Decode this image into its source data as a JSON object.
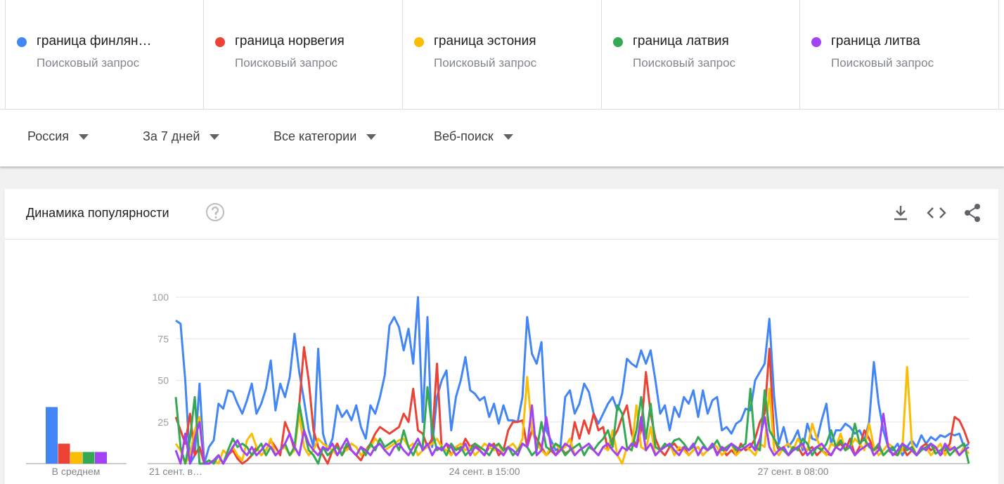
{
  "query_type": "Поисковый запрос",
  "filters": [
    "Россия",
    "За 7 дней",
    "Все категории",
    "Веб-поиск"
  ],
  "card_title": "Динамика популярности",
  "chart_data": [
    {
      "type": "bar",
      "xlabel": "В среднем",
      "ylim": [
        0,
        100
      ],
      "series": [
        {
          "color": "#4285f4",
          "values": [
            34
          ]
        },
        {
          "color": "#ea4335",
          "values": [
            12
          ]
        },
        {
          "color": "#fbbc04",
          "values": [
            7
          ]
        },
        {
          "color": "#34a853",
          "values": [
            7
          ]
        },
        {
          "color": "#a142f4",
          "values": [
            7
          ]
        }
      ]
    },
    {
      "type": "line",
      "ylim": [
        0,
        100
      ],
      "yticks": [
        25,
        50,
        75,
        100
      ],
      "grid": true,
      "categories": [
        "21 сент. в…",
        null,
        null,
        null,
        null,
        null,
        null,
        null,
        null,
        null,
        null,
        null,
        null,
        null,
        null,
        null,
        null,
        null,
        null,
        null,
        null,
        null,
        null,
        null,
        null,
        null,
        null,
        null,
        null,
        null,
        null,
        null,
        null,
        null,
        null,
        null,
        null,
        null,
        null,
        null,
        null,
        null,
        null,
        null,
        null,
        null,
        null,
        null,
        null,
        null,
        null,
        null,
        null,
        null,
        null,
        null,
        null,
        null,
        null,
        null,
        null,
        null,
        null,
        null,
        null,
        "24 сент. в 15:00",
        null,
        null,
        null,
        null,
        null,
        null,
        null,
        null,
        null,
        null,
        null,
        null,
        null,
        null,
        null,
        null,
        null,
        null,
        null,
        null,
        null,
        null,
        null,
        null,
        null,
        null,
        null,
        null,
        null,
        null,
        null,
        null,
        null,
        null,
        null,
        null,
        null,
        null,
        null,
        null,
        null,
        null,
        null,
        null,
        null,
        null,
        null,
        null,
        null,
        null,
        null,
        null,
        null,
        null,
        null,
        null,
        null,
        null,
        null,
        null,
        null,
        null,
        null,
        null,
        "27 сент. в 08:00",
        null,
        null,
        null,
        null,
        null,
        null,
        null,
        null,
        null,
        null,
        null,
        null,
        null,
        null,
        null,
        null,
        null,
        null,
        null,
        null,
        null,
        null,
        null,
        null,
        null,
        null,
        null,
        null,
        null,
        null,
        null,
        null,
        null,
        null,
        null,
        null,
        null
      ],
      "series": [
        {
          "name": "граница финлян…",
          "color": "#4285f4",
          "values": [
            86,
            84,
            50,
            0,
            5,
            48,
            0,
            10,
            14,
            36,
            33,
            44,
            43,
            36,
            30,
            38,
            48,
            30,
            36,
            45,
            62,
            32,
            48,
            40,
            52,
            78,
            55,
            38,
            20,
            10,
            69,
            18,
            8,
            15,
            35,
            28,
            32,
            26,
            35,
            22,
            15,
            35,
            30,
            40,
            53,
            83,
            88,
            82,
            68,
            81,
            60,
            100,
            25,
            88,
            10,
            40,
            50,
            56,
            20,
            40,
            50,
            64,
            44,
            42,
            38,
            40,
            28,
            36,
            24,
            35,
            26,
            26,
            25,
            40,
            88,
            66,
            60,
            73,
            20,
            14,
            8,
            10,
            40,
            44,
            30,
            36,
            48,
            43,
            30,
            24,
            30,
            36,
            40,
            32,
            42,
            63,
            60,
            58,
            68,
            60,
            68,
            50,
            30,
            35,
            20,
            34,
            28,
            40,
            36,
            44,
            28,
            44,
            30,
            38,
            40,
            20,
            22,
            18,
            24,
            26,
            33,
            32,
            50,
            55,
            60,
            87,
            40,
            12,
            22,
            10,
            14,
            20,
            8,
            24,
            15,
            14,
            26,
            36,
            12,
            20,
            20,
            24,
            22,
            18,
            20,
            14,
            25,
            61,
            36,
            20,
            10,
            8,
            12,
            5,
            10,
            14,
            10,
            17,
            12,
            16,
            14,
            17,
            16,
            18,
            17,
            18,
            10,
            12
          ]
        },
        {
          "name": "граница норвегия",
          "color": "#ea4335",
          "values": [
            28,
            20,
            12,
            30,
            5,
            10,
            0,
            0,
            2,
            5,
            0,
            5,
            8,
            3,
            0,
            2,
            5,
            10,
            5,
            8,
            14,
            10,
            5,
            25,
            18,
            8,
            35,
            70,
            50,
            20,
            10,
            5,
            0,
            8,
            12,
            5,
            10,
            8,
            5,
            2,
            8,
            12,
            18,
            22,
            20,
            18,
            20,
            22,
            30,
            25,
            45,
            20,
            18,
            10,
            15,
            60,
            8,
            12,
            5,
            10,
            8,
            15,
            10,
            12,
            8,
            5,
            10,
            12,
            5,
            8,
            20,
            25,
            25,
            26,
            10,
            20,
            15,
            10,
            5,
            8,
            5,
            10,
            6,
            8,
            25,
            15,
            26,
            18,
            30,
            20,
            22,
            8,
            15,
            20,
            28,
            35,
            18,
            10,
            20,
            55,
            30,
            15,
            8,
            5,
            10,
            12,
            8,
            10,
            5,
            8,
            10,
            5,
            8,
            12,
            6,
            10,
            5,
            8,
            5,
            12,
            8,
            10,
            15,
            25,
            30,
            69,
            15,
            8,
            10,
            5,
            8,
            10,
            5,
            8,
            10,
            5,
            8,
            6,
            5,
            10,
            12,
            8,
            15,
            5,
            10,
            20,
            15,
            8,
            10,
            5,
            8,
            6,
            5,
            10,
            5,
            8,
            5,
            10,
            12,
            8,
            10,
            5,
            8,
            12,
            28,
            26,
            20,
            12
          ]
        },
        {
          "name": "граница эстония",
          "color": "#fbbc04",
          "values": [
            12,
            8,
            0,
            5,
            20,
            28,
            0,
            0,
            2,
            0,
            8,
            5,
            10,
            5,
            2,
            14,
            18,
            10,
            5,
            8,
            15,
            5,
            8,
            10,
            5,
            8,
            30,
            10,
            5,
            8,
            15,
            12,
            10,
            8,
            5,
            10,
            8,
            12,
            10,
            5,
            8,
            10,
            15,
            12,
            8,
            10,
            12,
            14,
            15,
            10,
            12,
            5,
            8,
            10,
            12,
            15,
            10,
            8,
            5,
            10,
            12,
            8,
            10,
            5,
            8,
            12,
            10,
            8,
            12,
            5,
            10,
            12,
            8,
            15,
            52,
            20,
            12,
            8,
            5,
            10,
            12,
            8,
            10,
            15,
            5,
            8,
            10,
            12,
            8,
            5,
            10,
            8,
            20,
            5,
            0,
            10,
            8,
            35,
            10,
            8,
            22,
            5,
            8,
            10,
            12,
            5,
            10,
            8,
            5,
            8,
            10,
            5,
            8,
            12,
            10,
            5,
            8,
            12,
            5,
            8,
            10,
            8,
            5,
            12,
            10,
            45,
            8,
            5,
            10,
            12,
            8,
            15,
            10,
            8,
            24,
            15,
            8,
            5,
            12,
            10,
            18,
            8,
            10,
            15,
            12,
            8,
            24,
            10,
            5,
            8,
            12,
            10,
            5,
            8,
            58,
            12,
            5,
            8,
            10,
            5,
            8,
            12,
            5,
            10,
            8,
            5,
            10,
            6
          ]
        },
        {
          "name": "граница латвия",
          "color": "#34a853",
          "values": [
            40,
            10,
            0,
            15,
            40,
            0,
            0,
            2,
            0,
            5,
            0,
            8,
            15,
            10,
            12,
            10,
            5,
            8,
            12,
            5,
            10,
            5,
            8,
            12,
            5,
            10,
            36,
            20,
            8,
            5,
            0,
            10,
            5,
            8,
            10,
            5,
            12,
            8,
            5,
            10,
            5,
            12,
            8,
            15,
            10,
            12,
            14,
            8,
            20,
            10,
            5,
            12,
            10,
            46,
            20,
            8,
            10,
            5,
            12,
            8,
            10,
            5,
            8,
            12,
            10,
            8,
            5,
            10,
            12,
            8,
            10,
            5,
            8,
            12,
            10,
            5,
            8,
            25,
            10,
            8,
            12,
            10,
            5,
            8,
            10,
            12,
            5,
            10,
            8,
            12,
            15,
            20,
            10,
            35,
            30,
            10,
            8,
            20,
            40,
            15,
            36,
            10,
            8,
            12,
            10,
            14,
            15,
            12,
            8,
            10,
            16,
            12,
            8,
            10,
            14,
            8,
            10,
            12,
            8,
            10,
            12,
            45,
            10,
            8,
            44,
            20,
            15,
            10,
            8,
            5,
            10,
            8,
            15,
            12,
            5,
            10,
            8,
            12,
            20,
            10,
            14,
            8,
            10,
            24,
            12,
            15,
            10,
            8,
            12,
            5,
            8,
            10,
            5,
            12,
            8,
            10,
            5,
            8,
            10,
            12,
            6,
            8,
            10,
            5,
            8,
            10,
            12,
            0
          ]
        },
        {
          "name": "граница литва",
          "color": "#a142f4",
          "values": [
            8,
            0,
            18,
            0,
            15,
            25,
            0,
            0,
            2,
            5,
            0,
            5,
            10,
            14,
            8,
            5,
            10,
            5,
            8,
            12,
            10,
            5,
            8,
            12,
            18,
            10,
            5,
            20,
            12,
            8,
            5,
            10,
            8,
            12,
            5,
            10,
            15,
            8,
            5,
            10,
            8,
            5,
            10,
            12,
            8,
            5,
            10,
            12,
            8,
            5,
            10,
            15,
            8,
            12,
            5,
            10,
            8,
            12,
            10,
            5,
            8,
            12,
            5,
            10,
            8,
            5,
            12,
            10,
            8,
            5,
            10,
            8,
            5,
            12,
            10,
            35,
            5,
            8,
            28,
            10,
            5,
            8,
            12,
            10,
            5,
            8,
            10,
            12,
            8,
            5,
            10,
            12,
            8,
            5,
            10,
            8,
            12,
            10,
            28,
            8,
            12,
            5,
            8,
            10,
            12,
            8,
            5,
            10,
            8,
            12,
            5,
            10,
            8,
            12,
            5,
            10,
            8,
            12,
            10,
            8,
            10,
            12,
            8,
            15,
            28,
            10,
            5,
            8,
            10,
            5,
            8,
            10,
            12,
            5,
            8,
            10,
            12,
            8,
            5,
            10,
            8,
            12,
            10,
            5,
            8,
            10,
            12,
            5,
            8,
            30,
            10,
            5,
            8,
            12,
            10,
            8,
            5,
            10,
            8,
            12,
            10,
            5,
            12,
            8,
            10,
            5,
            8,
            10
          ]
        }
      ]
    }
  ]
}
